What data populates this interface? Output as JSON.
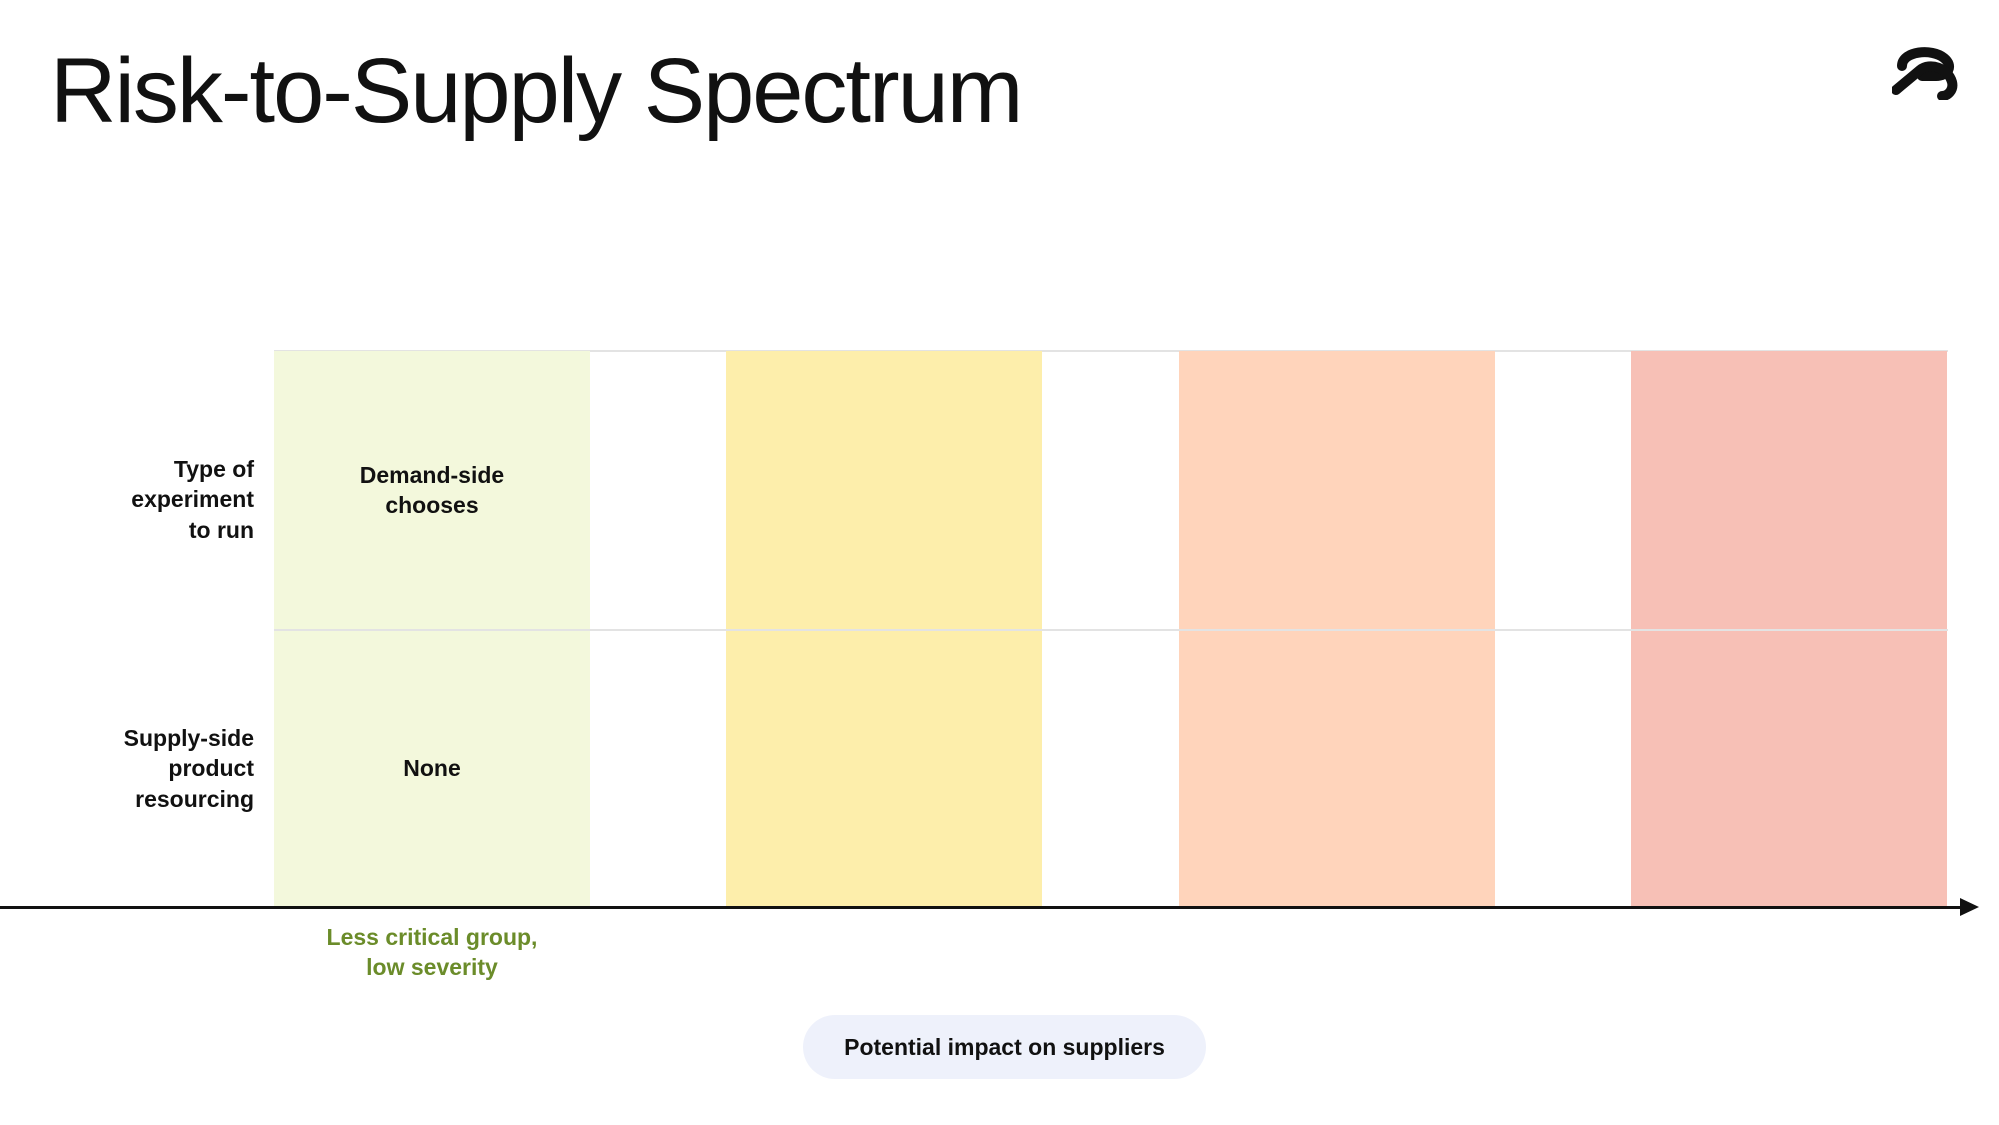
{
  "slide": {
    "title": "Risk-to-Supply Spectrum",
    "logo_icon": "brand-logo-icon"
  },
  "rows": [
    {
      "label_lines": [
        "Type of",
        "experiment",
        "to run"
      ]
    },
    {
      "label_lines": [
        "Supply-side",
        "product",
        "resourcing"
      ]
    }
  ],
  "columns": [
    {
      "color": "#f3f8dc",
      "cells": [
        [
          "Demand-side",
          "chooses"
        ],
        [
          "None"
        ]
      ],
      "severity_lines": [
        "Less critical group,",
        "low severity"
      ]
    },
    {
      "color": "#fdeeab",
      "cells": [
        [],
        []
      ],
      "severity_lines": []
    },
    {
      "color": "#ffd4bb",
      "cells": [
        [],
        []
      ],
      "severity_lines": []
    },
    {
      "color": "#f7c0b6",
      "cells": [
        [],
        []
      ],
      "severity_lines": []
    }
  ],
  "severity_color": "#6b8c2a",
  "axis": {
    "label": "Potential impact on suppliers"
  }
}
